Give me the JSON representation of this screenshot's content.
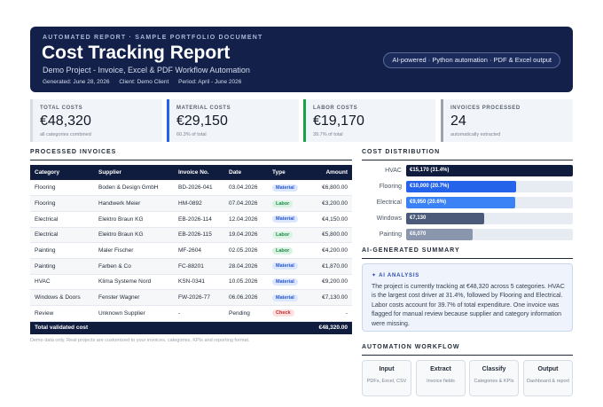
{
  "header": {
    "eyebrow": "AUTOMATED REPORT · SAMPLE PORTFOLIO DOCUMENT",
    "title": "Cost Tracking Report",
    "subtitle": "Demo Project - Invoice, Excel & PDF Workflow Automation",
    "generated": "Generated: June 28, 2026",
    "client": "Client: Demo Client",
    "period": "Period: April - June 2026",
    "badge": "AI-powered · Python automation · PDF & Excel output"
  },
  "kpis": [
    {
      "label": "TOTAL COSTS",
      "value": "€48,320",
      "sub": "all categories combined",
      "accent": "#d7dde6"
    },
    {
      "label": "MATERIAL COSTS",
      "value": "€29,150",
      "sub": "60.3% of total",
      "accent": "#2563eb"
    },
    {
      "label": "LABOR COSTS",
      "value": "€19,170",
      "sub": "39.7% of total",
      "accent": "#16a34a"
    },
    {
      "label": "INVOICES PROCESSED",
      "value": "24",
      "sub": "automatically extracted",
      "accent": "#9ca3af"
    }
  ],
  "sections": {
    "invoices": "PROCESSED INVOICES",
    "distribution": "COST DISTRIBUTION",
    "summary": "AI-GENERATED SUMMARY",
    "workflow": "AUTOMATION WORKFLOW"
  },
  "table": {
    "headers": [
      "Category",
      "Supplier",
      "Invoice No.",
      "Date",
      "Type",
      "Amount"
    ],
    "rows": [
      [
        "Flooring",
        "Boden & Design GmbH",
        "BD-2026-041",
        "03.04.2026",
        "Material",
        "€6,800.00"
      ],
      [
        "Flooring",
        "Handwerk Meier",
        "HM-0892",
        "07.04.2026",
        "Labor",
        "€3,200.00"
      ],
      [
        "Electrical",
        "Elektro Braun KG",
        "EB-2026-114",
        "12.04.2026",
        "Material",
        "€4,150.00"
      ],
      [
        "Electrical",
        "Elektro Braun KG",
        "EB-2026-115",
        "19.04.2026",
        "Labor",
        "€5,800.00"
      ],
      [
        "Painting",
        "Maler Fischer",
        "MF-2604",
        "02.05.2026",
        "Labor",
        "€4,200.00"
      ],
      [
        "Painting",
        "Farben & Co",
        "FC-88201",
        "28.04.2026",
        "Material",
        "€1,870.00"
      ],
      [
        "HVAC",
        "Klima Systeme Nord",
        "KSN-0341",
        "10.05.2026",
        "Material",
        "€9,200.00"
      ],
      [
        "Windows & Doors",
        "Fenster Wagner",
        "FW-2026-77",
        "06.06.2026",
        "Material",
        "€7,130.00"
      ],
      [
        "Review",
        "Unknown Supplier",
        "-",
        "Pending",
        "Check",
        "-"
      ]
    ],
    "total_label": "Total validated cost",
    "total_value": "€48,320.00",
    "footnote": "Demo data only. Real projects are customized to your invoices, categories, KPIs and reporting format."
  },
  "chart_data": {
    "type": "bar",
    "orientation": "horizontal",
    "categories": [
      "HVAC",
      "Flooring",
      "Electrical",
      "Windows",
      "Painting"
    ],
    "values": [
      15170,
      10000,
      9950,
      7130,
      6070
    ],
    "labels": [
      "€15,170 (31.4%)",
      "€10,000 (20.7%)",
      "€9,950 (20.6%)",
      "€7,130",
      "€6,070"
    ],
    "colors": [
      "#0f1c3d",
      "#2563eb",
      "#3b82f6",
      "#4b5a78",
      "#8a96ae"
    ],
    "xlim": [
      0,
      15170
    ]
  },
  "ai_summary": {
    "title": "✦ AI ANALYSIS",
    "text": "The project is currently tracking at €48,320 across 5 categories. HVAC is the largest cost driver at 31.4%, followed by Flooring and Electrical. Labor costs account for 39.7% of total expenditure. One invoice was flagged for manual review because supplier and category information were missing."
  },
  "workflow": [
    {
      "title": "Input",
      "desc": "PDFs, Excel, CSV"
    },
    {
      "title": "Extract",
      "desc": "Invoice fields"
    },
    {
      "title": "Classify",
      "desc": "Categories & KPIs"
    },
    {
      "title": "Output",
      "desc": "Dashboard & report"
    }
  ]
}
